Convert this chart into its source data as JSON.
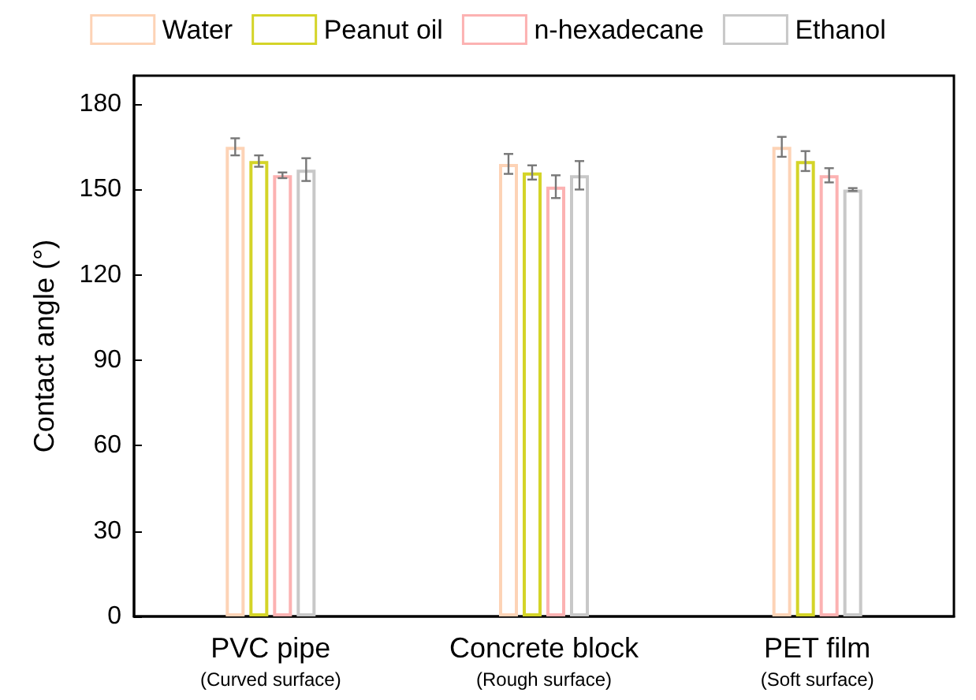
{
  "chart_data": {
    "type": "bar",
    "ylabel": "Contact angle (°)",
    "categories": [
      "PVC pipe\n(Curved surface)",
      "Concrete block\n(Rough surface)",
      "PET film\n(Soft surface)"
    ],
    "series": [
      {
        "name": "Water",
        "color": "#fdd3b6",
        "values": [
          165,
          159,
          165
        ],
        "errors": [
          3,
          3.5,
          3.5
        ]
      },
      {
        "name": "Peanut oil",
        "color": "#d4d428",
        "values": [
          160,
          156,
          160
        ],
        "errors": [
          2,
          2.5,
          3.5
        ]
      },
      {
        "name": "n-hexadecane",
        "color": "#fcb2b2",
        "values": [
          155,
          151,
          155
        ],
        "errors": [
          1,
          4,
          2.5
        ]
      },
      {
        "name": "Ethanol",
        "color": "#c8c8c8",
        "values": [
          157,
          155,
          150
        ],
        "errors": [
          4,
          5,
          0.5
        ]
      }
    ],
    "ylim": [
      0,
      190
    ],
    "yticks": [
      0,
      30,
      60,
      90,
      120,
      150,
      180
    ],
    "grid": false,
    "legend": "top"
  }
}
